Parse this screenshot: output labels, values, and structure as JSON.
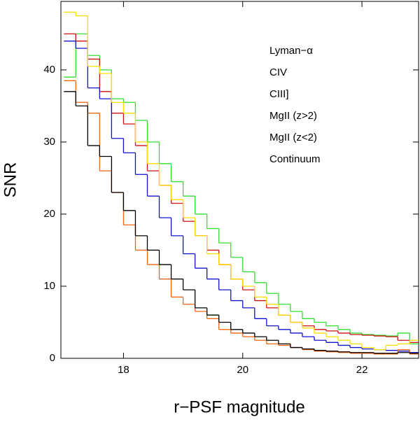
{
  "chart_data": {
    "type": "histogram",
    "xlabel": "r−PSF magnitude",
    "ylabel": "SNR",
    "bins": [
      17.0,
      17.2,
      17.4,
      17.6,
      17.8,
      18.0,
      18.2,
      18.4,
      18.6,
      18.8,
      19.0,
      19.2,
      19.4,
      19.6,
      19.8,
      20.0,
      20.2,
      20.4,
      20.6,
      20.8,
      21.0,
      21.2,
      21.4,
      21.6,
      21.8,
      22.0,
      22.2,
      22.4,
      22.6,
      22.8,
      23.0
    ],
    "series": [
      {
        "name": "Lyman−α",
        "color": "#33dd33",
        "values": [
          39,
          45,
          42,
          40,
          36,
          35.5,
          33,
          30,
          27,
          24.5,
          22.5,
          20,
          18,
          16,
          14,
          12,
          10.5,
          9,
          7.5,
          6.5,
          5.5,
          5,
          4.5,
          4,
          3.5,
          3.3,
          3.2,
          3.1,
          3.5,
          2.0
        ]
      },
      {
        "name": "CIV",
        "color": "#cc1111",
        "values": [
          45,
          44,
          41.5,
          37,
          34,
          32.5,
          29.5,
          26,
          24,
          21.5,
          19,
          17,
          15,
          13,
          11,
          9.5,
          8,
          7,
          6,
          5,
          4.5,
          4,
          3.8,
          3.5,
          3.3,
          3.2,
          3.1,
          3,
          2.5,
          2.2
        ]
      },
      {
        "name": "CIII]",
        "color": "#1111cc",
        "values": [
          44,
          43,
          37.5,
          36,
          30.5,
          28.5,
          25.5,
          22.5,
          19.5,
          17,
          14.5,
          12.5,
          11,
          9.5,
          8,
          7,
          5.5,
          4.5,
          4,
          3.5,
          3,
          2.5,
          2.2,
          1.8,
          1.5,
          1.3,
          1.2,
          1.1,
          1.0,
          0.8
        ]
      },
      {
        "name": "MgII (z>2)",
        "color": "#ee6611",
        "values": [
          38.5,
          35.5,
          34,
          26,
          23,
          18.5,
          15,
          13,
          11,
          8.5,
          7.5,
          6.5,
          5.5,
          4,
          3.5,
          3,
          2.5,
          2,
          1.8,
          1.5,
          1.2,
          1,
          0.9,
          0.8,
          0.7,
          0.7,
          0.6,
          0.6,
          1.2,
          0.6
        ]
      },
      {
        "name": "MgII (z<2)",
        "color": "#ffdd00",
        "values": [
          48,
          47.5,
          40.5,
          39.5,
          35.5,
          34,
          30,
          27,
          24,
          22,
          19.5,
          17,
          14.5,
          13,
          11,
          10,
          8.5,
          7.5,
          6,
          5,
          4.2,
          3.5,
          3,
          2.5,
          2,
          1.5,
          1.2,
          1.8,
          2,
          2.5
        ]
      },
      {
        "name": "Continuum",
        "color": "#000000",
        "values": [
          37,
          35,
          29.5,
          28,
          23,
          20.5,
          17,
          15,
          13,
          11,
          9.5,
          7,
          6,
          5,
          4,
          3.5,
          3,
          2.5,
          2,
          1.5,
          1.3,
          1.1,
          1,
          0.9,
          0.8,
          0.8,
          0.7,
          0.7,
          0.8,
          0.7
        ]
      }
    ],
    "xlim": [
      16.95,
      22.95
    ],
    "xticks": [
      18,
      20,
      22
    ],
    "ylim": [
      0,
      49.5
    ],
    "yticks": [
      0,
      10,
      20,
      30,
      40
    ],
    "legend": "upper right"
  }
}
